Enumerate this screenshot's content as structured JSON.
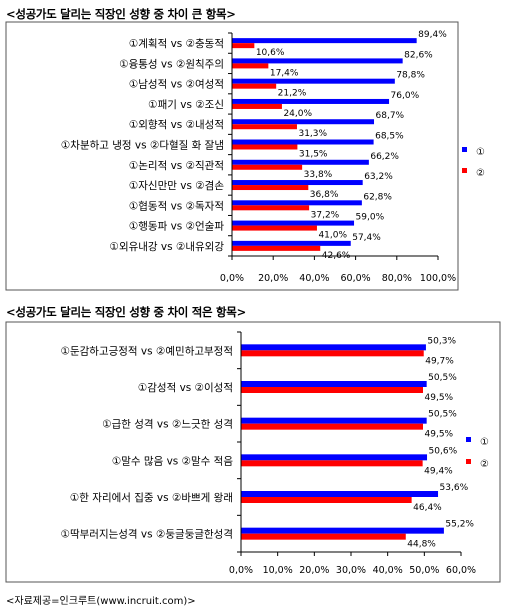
{
  "chart_data": [
    {
      "type": "bar",
      "orientation": "horizontal",
      "title": "<성공가도 달리는 직장인 성향 중 차이 큰 항목>",
      "categories": [
        "①계획적 vs ②충동적",
        "①융통성 vs ②원칙주의",
        "①남성적 vs ②여성적",
        "①패기 vs ②조신",
        "①외향적 vs ②내성적",
        "①차분하고 냉정 vs ②다혈질 화 잘냄",
        "①논리적 vs ②직관적",
        "①자신만만 vs ②겸손",
        "①협동적 vs ②독자적",
        "①행동파 vs ②언술파",
        "①외유내강 vs ②내유외강"
      ],
      "series": [
        {
          "name": "①",
          "color": "#0000ff",
          "values": [
            89.4,
            82.6,
            78.8,
            76.0,
            68.7,
            68.5,
            66.2,
            63.2,
            62.8,
            59.0,
            57.4
          ],
          "labels": [
            "89,4%",
            "82,6%",
            "78,8%",
            "76,0%",
            "68,7%",
            "68,5%",
            "66,2%",
            "63,2%",
            "62,8%",
            "59,0%",
            "57,4%"
          ]
        },
        {
          "name": "②",
          "color": "#ff0000",
          "values": [
            10.6,
            17.4,
            21.2,
            24.0,
            31.3,
            31.5,
            33.8,
            36.8,
            37.2,
            41.0,
            42.6
          ],
          "labels": [
            "10,6%",
            "17,4%",
            "21,2%",
            "24,0%",
            "31,3%",
            "31,5%",
            "33,8%",
            "36,8%",
            "37,2%",
            "41,0%",
            "42,6%"
          ]
        }
      ],
      "xlim": [
        0,
        100
      ],
      "xticks": [
        "0,0%",
        "20,0%",
        "40,0%",
        "60,0%",
        "80,0%",
        "100,0%"
      ],
      "grid": false,
      "legend": "right"
    },
    {
      "type": "bar",
      "orientation": "horizontal",
      "title": "<성공가도 달리는 직장인 성향 중 차이 적은 항목>",
      "categories": [
        "①둔감하고긍정적 vs ②예민하고부정적",
        "①감성적 vs ②이성적",
        "①급한 성격 vs ②느긋한 성격",
        "①말수 많음 vs ②말수 적음",
        "①한 자리에서 집중 vs ②바쁘게 왕래",
        "①딱부러지는성격 vs ②둥글둥글한성격"
      ],
      "series": [
        {
          "name": "①",
          "color": "#0000ff",
          "values": [
            50.3,
            50.5,
            50.5,
            50.6,
            53.6,
            55.2
          ],
          "labels": [
            "50,3%",
            "50,5%",
            "50,5%",
            "50,6%",
            "53,6%",
            "55,2%"
          ]
        },
        {
          "name": "②",
          "color": "#ff0000",
          "values": [
            49.7,
            49.5,
            49.5,
            49.4,
            46.4,
            44.8
          ],
          "labels": [
            "49,7%",
            "49,5%",
            "49,5%",
            "49,4%",
            "46,4%",
            "44,8%"
          ]
        }
      ],
      "xlim": [
        0,
        60
      ],
      "xticks": [
        "0,0%",
        "10,0%",
        "20,0%",
        "30,0%",
        "40,0%",
        "50,0%",
        "60,0%"
      ],
      "grid": false,
      "legend": "right"
    }
  ],
  "source": "<자료제공=인크루트(www.incruit.com)>"
}
